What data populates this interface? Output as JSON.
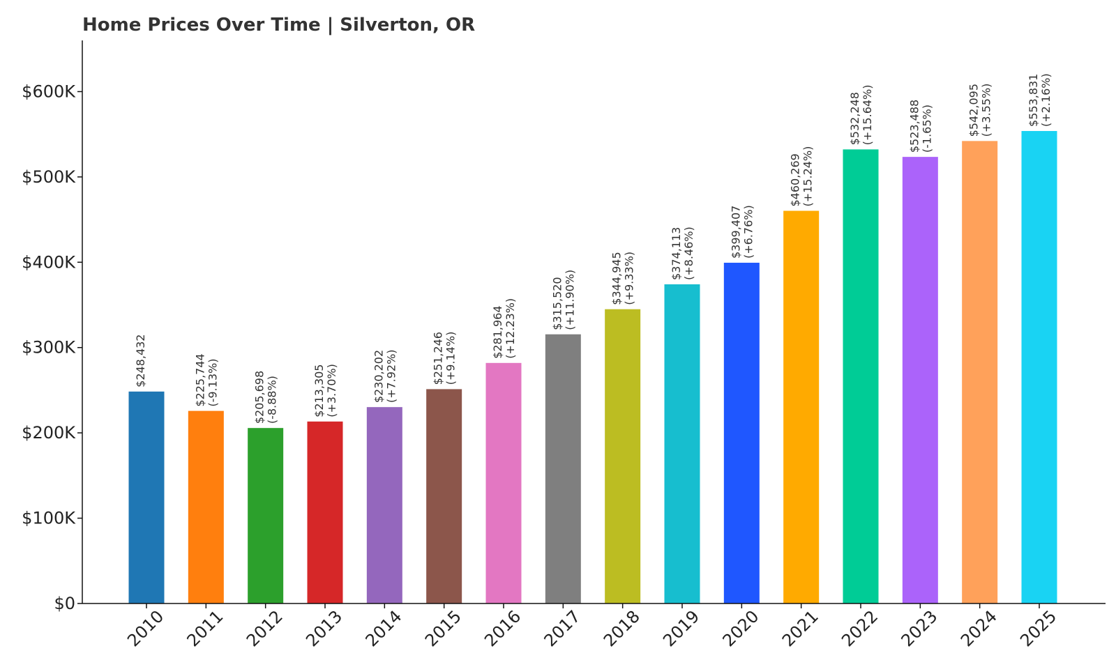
{
  "chart_data": {
    "type": "bar",
    "title": "Home Prices Over Time | Silverton, OR",
    "xlabel": "",
    "ylabel": "",
    "ylim": [
      0,
      660000
    ],
    "yticks": [
      0,
      100000,
      200000,
      300000,
      400000,
      500000,
      600000
    ],
    "ytick_labels": [
      "$0",
      "$100K",
      "$200K",
      "$300K",
      "$400K",
      "$500K",
      "$600K"
    ],
    "grid": false,
    "categories": [
      "2010",
      "2011",
      "2012",
      "2013",
      "2014",
      "2015",
      "2016",
      "2017",
      "2018",
      "2019",
      "2020",
      "2021",
      "2022",
      "2023",
      "2024",
      "2025"
    ],
    "values": [
      248432,
      225744,
      205698,
      213305,
      230202,
      251246,
      281964,
      315520,
      344945,
      374113,
      399407,
      460269,
      532248,
      523488,
      542095,
      553831
    ],
    "value_labels": [
      "$248,432",
      "$225,744",
      "$205,698",
      "$213,305",
      "$230,202",
      "$251,246",
      "$281,964",
      "$315,520",
      "$344,945",
      "$374,113",
      "$399,407",
      "$460,269",
      "$532,248",
      "$523,488",
      "$542,095",
      "$553,831"
    ],
    "change_labels": [
      "",
      "(-9.13%)",
      "(-8.88%)",
      "(+3.70%)",
      "(+7.92%)",
      "(+9.14%)",
      "(+12.23%)",
      "(+11.90%)",
      "(+9.33%)",
      "(+8.46%)",
      "(+6.76%)",
      "(+15.24%)",
      "(+15.64%)",
      "(-1.65%)",
      "(+3.55%)",
      "(+2.16%)"
    ],
    "colors": [
      "#1f77b4",
      "#ff7f0e",
      "#2ca02c",
      "#d62728",
      "#9467bd",
      "#8c564b",
      "#e377c2",
      "#7f7f7f",
      "#bcbd22",
      "#17becf",
      "#1f57ff",
      "#ffaa00",
      "#00cc96",
      "#ab63fa",
      "#ffa15a",
      "#19d3f3"
    ]
  }
}
